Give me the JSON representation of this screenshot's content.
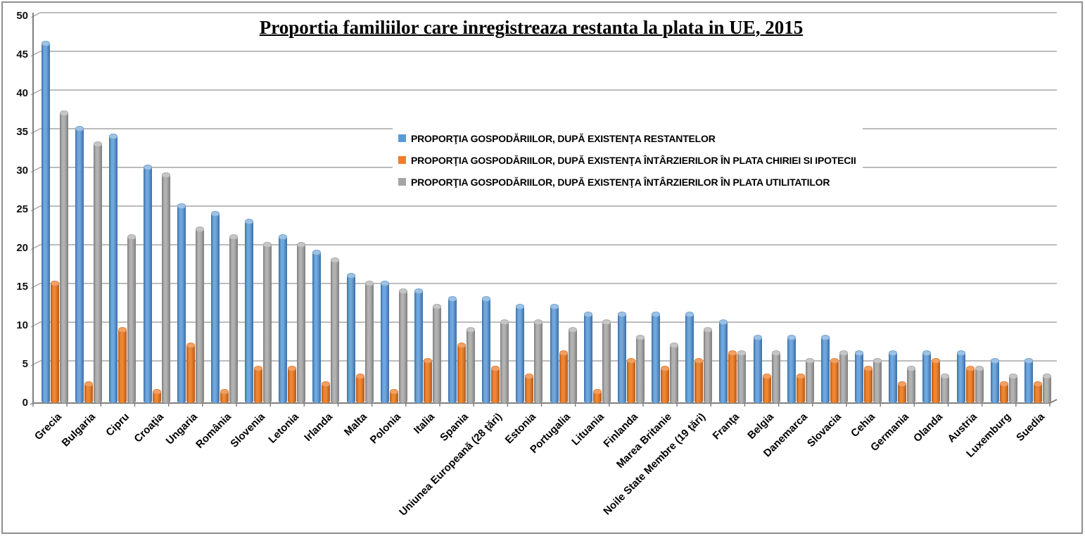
{
  "chart_data": {
    "type": "bar",
    "subtype": "cylinder-3d",
    "title": "Proportia familiilor care inregistreaza restanta la plata in UE, 2015",
    "xlabel": "",
    "ylabel": "",
    "ylim": [
      0,
      50
    ],
    "yticks": [
      0,
      5,
      10,
      15,
      20,
      25,
      30,
      35,
      40,
      45,
      50
    ],
    "grid": true,
    "legend_position": "inside-top-center",
    "categories": [
      "Grecia",
      "Bulgaria",
      "Cipru",
      "Croaţia",
      "Ungaria",
      "România",
      "Slovenia",
      "Letonia",
      "Irlanda",
      "Malta",
      "Polonia",
      "Italia",
      "Spania",
      "Uniunea Europeană (28 ţări)",
      "Estonia",
      "Portugalia",
      "Lituania",
      "Finlanda",
      "Marea Britanie",
      "Noile State Membre (19 ţări)",
      "Franţa",
      "Belgia",
      "Danemarca",
      "Slovacia",
      "Cehia",
      "Germania",
      "Olanda",
      "Austria",
      "Luxemburg",
      "Suedia"
    ],
    "series": [
      {
        "name": "PROPORŢIA GOSPODĂRIILOR, DUPĂ EXISTENŢA RESTANTELOR",
        "color": "#5B9BD5",
        "shade_dark": "#3A6EA4",
        "shade_light": "#6FA7DE",
        "cap": "#9CC2E5",
        "values": [
          46,
          35,
          34,
          30,
          25,
          24,
          23,
          21,
          19,
          16,
          15,
          14,
          13,
          13,
          12,
          12,
          11,
          11,
          11,
          11,
          10,
          8,
          8,
          8,
          6,
          6,
          6,
          6,
          5,
          5
        ]
      },
      {
        "name": "PROPORŢIA GOSPODĂRIILOR, DUPĂ EXISTENŢA ÎNTÂRZIERILOR ÎN PLATA CHIRIEI SI IPOTECII",
        "color": "#ED7D31",
        "shade_dark": "#B35A1E",
        "shade_light": "#F0862F",
        "cap": "#F3A061",
        "values": [
          15,
          2,
          9,
          1,
          7,
          1,
          4,
          4,
          2,
          3,
          1,
          5,
          7,
          4,
          3,
          6,
          1,
          5,
          4,
          5,
          6,
          3,
          3,
          5,
          4,
          2,
          5,
          4,
          2,
          2
        ]
      },
      {
        "name": "PROPORŢIA GOSPODĂRIILOR, DUPĂ EXISTENŢA ÎNTÂRZIERILOR ÎN PLATA UTILITATILOR",
        "color": "#A5A5A5",
        "shade_dark": "#7D7D7D",
        "shade_light": "#B2B2B2",
        "cap": "#C6C6C6",
        "values": [
          37,
          33,
          21,
          29,
          22,
          21,
          20,
          20,
          18,
          15,
          14,
          12,
          9,
          10,
          10,
          9,
          10,
          8,
          7,
          9,
          6,
          6,
          5,
          6,
          5,
          4,
          3,
          4,
          3,
          3
        ]
      }
    ],
    "axis_colors": {
      "gridline": "#A6A6A6",
      "axis": "#808080"
    }
  }
}
